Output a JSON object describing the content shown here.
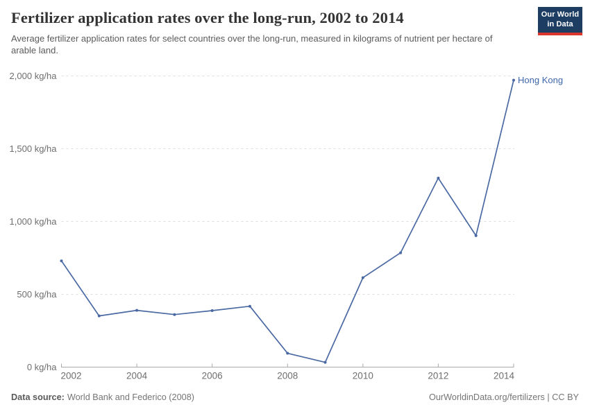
{
  "header": {
    "title": "Fertilizer application rates over the long-run, 2002 to 2014",
    "subtitle": "Average fertilizer application rates for select countries over the long-run, measured in kilograms of nutrient per hectare of arable land.",
    "logo": {
      "line1": "Our World",
      "line2": "in Data"
    }
  },
  "chart_data": {
    "type": "line",
    "title": "Fertilizer application rates over the long-run, 2002 to 2014",
    "xlabel": "",
    "ylabel": "kg of nutrient per hectare of arable land",
    "xlim": [
      2002,
      2014
    ],
    "ylim": [
      0,
      2000
    ],
    "grid": "horizontal-dashed",
    "x_ticks": [
      2002,
      2004,
      2006,
      2008,
      2010,
      2012,
      2014
    ],
    "y_ticks": [
      {
        "value": 0,
        "label": "0 kg/ha"
      },
      {
        "value": 500,
        "label": "500 kg/ha"
      },
      {
        "value": 1000,
        "label": "1,000 kg/ha"
      },
      {
        "value": 1500,
        "label": "1,500 kg/ha"
      },
      {
        "value": 2000,
        "label": "2,000 kg/ha"
      }
    ],
    "series": [
      {
        "name": "Hong Kong",
        "color": "#4a69a3",
        "label_color": "#3e66ac",
        "x": [
          2002,
          2003,
          2004,
          2005,
          2006,
          2007,
          2008,
          2009,
          2010,
          2011,
          2012,
          2013,
          2014
        ],
        "values": [
          730,
          352,
          390,
          361,
          388,
          418,
          95,
          33,
          614,
          785,
          1298,
          903,
          1971
        ]
      }
    ],
    "legend_position": "end-of-line-label"
  },
  "colors": {
    "series_line": "#4a69a3",
    "series_label": "#3e66ac",
    "gridline": "#dcdcdc",
    "axis": "#a9a9a9",
    "tick_label": "#6e6e6e",
    "logo_bg": "#1d3d63",
    "logo_accent": "#dc352b"
  },
  "footer": {
    "source_label": "Data source:",
    "source_value": "World Bank and Federico (2008)",
    "credit": "OurWorldinData.org/fertilizers | CC BY"
  }
}
